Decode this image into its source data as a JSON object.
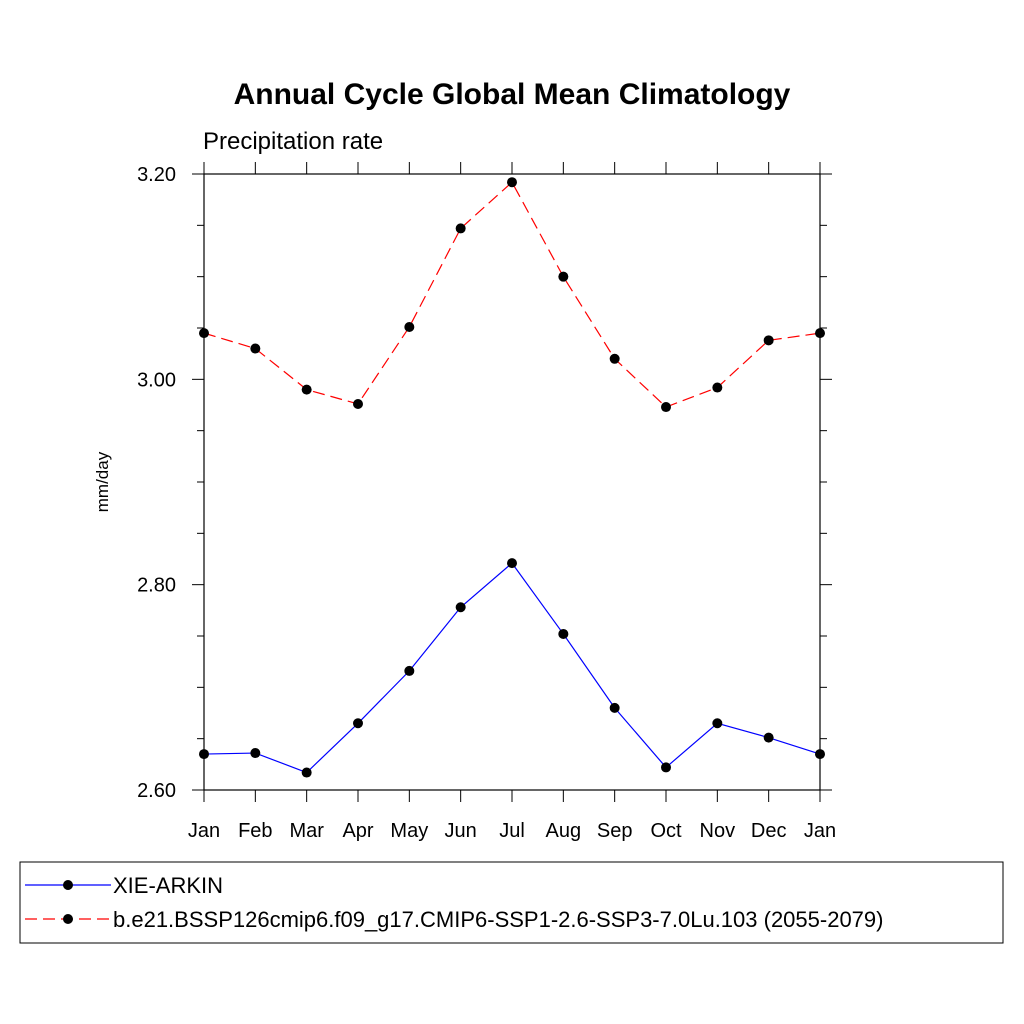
{
  "chart_data": {
    "type": "line",
    "title": "Annual Cycle Global Mean Climatology",
    "subtitle": "Precipitation rate",
    "xlabel": "",
    "ylabel": "mm/day",
    "categories": [
      "Jan",
      "Feb",
      "Mar",
      "Apr",
      "May",
      "Jun",
      "Jul",
      "Aug",
      "Sep",
      "Oct",
      "Nov",
      "Dec",
      "Jan"
    ],
    "ylim": [
      2.6,
      3.2
    ],
    "yticks": [
      "2.60",
      "2.80",
      "3.00",
      "3.20"
    ],
    "grid": false,
    "legend_position": "bottom",
    "series": [
      {
        "name": "XIE-ARKIN",
        "color": "#0000ff",
        "line_style": "solid",
        "marker": "filled-circle",
        "values": [
          2.635,
          2.636,
          2.617,
          2.665,
          2.716,
          2.778,
          2.821,
          2.752,
          2.68,
          2.622,
          2.665,
          2.651,
          2.635
        ]
      },
      {
        "name": "b.e21.BSSP126cmip6.f09_g17.CMIP6-SSP1-2.6-SSP3-7.0Lu.103 (2055-2079)",
        "color": "#ff0000",
        "line_style": "dashed",
        "marker": "filled-circle",
        "values": [
          3.045,
          3.03,
          2.99,
          2.976,
          3.051,
          3.147,
          3.192,
          3.1,
          3.02,
          2.973,
          2.992,
          3.038,
          3.045
        ]
      }
    ]
  }
}
